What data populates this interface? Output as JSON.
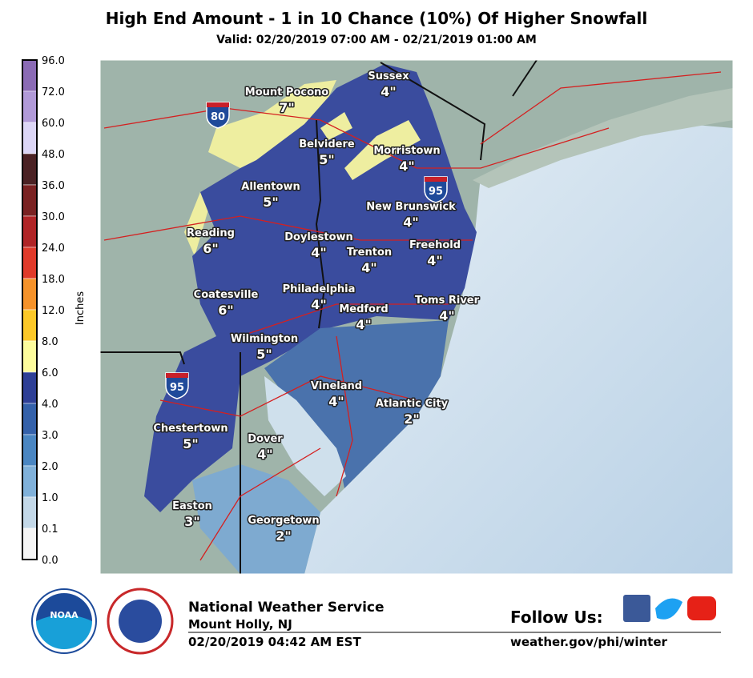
{
  "header": {
    "title": "High End Amount - 1 in 10 Chance (10%) Of Higher Snowfall",
    "subtitle": "Valid: 02/20/2019 07:00 AM - 02/21/2019 01:00 AM"
  },
  "legend": {
    "title": "Inches",
    "labels": [
      "96.0",
      "72.0",
      "60.0",
      "48.0",
      "36.0",
      "30.0",
      "24.0",
      "18.0",
      "12.0",
      "8.0",
      "6.0",
      "4.0",
      "3.0",
      "2.0",
      "1.0",
      "0.1",
      "0.0"
    ],
    "colors": [
      "#8b6bb5",
      "#b19ad8",
      "#dcd6f6",
      "#4b2224",
      "#7a2222",
      "#b02426",
      "#e03a2a",
      "#f5922a",
      "#fcc828",
      "#fdfc9c",
      "#2e3f96",
      "#3461aa",
      "#4a86c2",
      "#80b1da",
      "#c3d8e8",
      "#f5f5f5"
    ]
  },
  "cities": [
    {
      "name": "Sussex",
      "amount": "4\""
    },
    {
      "name": "Mount Pocono",
      "amount": "7\""
    },
    {
      "name": "Belvidere",
      "amount": "5\""
    },
    {
      "name": "Morristown",
      "amount": "4\""
    },
    {
      "name": "Allentown",
      "amount": "5\""
    },
    {
      "name": "New Brunswick",
      "amount": "4\""
    },
    {
      "name": "Reading",
      "amount": "6\""
    },
    {
      "name": "Doylestown",
      "amount": "4\""
    },
    {
      "name": "Freehold",
      "amount": "4\""
    },
    {
      "name": "Trenton",
      "amount": "4\""
    },
    {
      "name": "Philadelphia",
      "amount": "4\""
    },
    {
      "name": "Coatesville",
      "amount": "6\""
    },
    {
      "name": "Medford",
      "amount": "4\""
    },
    {
      "name": "Toms River",
      "amount": "4\""
    },
    {
      "name": "Wilmington",
      "amount": "5\""
    },
    {
      "name": "Vineland",
      "amount": "4\""
    },
    {
      "name": "Atlantic City",
      "amount": "2\""
    },
    {
      "name": "Chestertown",
      "amount": "5\""
    },
    {
      "name": "Dover",
      "amount": "4\""
    },
    {
      "name": "Easton",
      "amount": "3\""
    },
    {
      "name": "Georgetown",
      "amount": "2\""
    }
  ],
  "shields": [
    "80",
    "95",
    "95"
  ],
  "footer": {
    "agency": "National Weather Service",
    "office": "Mount Holly, NJ",
    "issued": "02/20/2019 04:42 AM EST",
    "follow": "Follow Us:",
    "url": "weather.gov/phi/winter",
    "noaa": "NOAA"
  }
}
